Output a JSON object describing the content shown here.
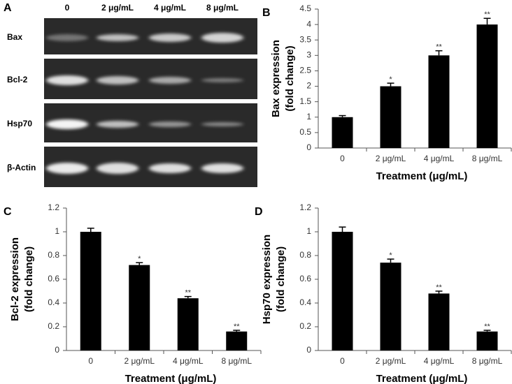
{
  "gel": {
    "panel_label": "A",
    "lanes": [
      "0",
      "2 μg/mL",
      "4 μg/mL",
      "8 μg/mL"
    ],
    "rows": [
      "Bax",
      "Bcl-2",
      "Hsp70",
      "β-Actin"
    ]
  },
  "chart_data": [
    {
      "type": "bar",
      "panel_label": "B",
      "y_label": [
        "Bax expression",
        "(fold change)"
      ],
      "x_label": "Treatment (μg/mL)",
      "categories": [
        "0",
        "2 μg/mL",
        "4 μg/mL",
        "8 μg/mL"
      ],
      "values": [
        1.0,
        2.0,
        3.0,
        4.0
      ],
      "errors": [
        0.05,
        0.1,
        0.15,
        0.2
      ],
      "annotations": [
        null,
        "*",
        "**",
        "**"
      ],
      "color": "#000000",
      "ylim": [
        0,
        4.5
      ],
      "yticks": [
        0,
        0.5,
        1,
        1.5,
        2,
        2.5,
        3,
        3.5,
        4,
        4.5
      ]
    },
    {
      "type": "bar",
      "panel_label": "C",
      "y_label": [
        "Bcl-2 expression",
        "(fold change)"
      ],
      "x_label": "Treatment (μg/mL)",
      "categories": [
        "0",
        "2 μg/mL",
        "4 μg/mL",
        "8 μg/mL"
      ],
      "values": [
        1.0,
        0.72,
        0.44,
        0.16
      ],
      "errors": [
        0.03,
        0.02,
        0.015,
        0.01
      ],
      "annotations": [
        null,
        "*",
        "**",
        "**"
      ],
      "color": "#000000",
      "ylim": [
        0,
        1.2
      ],
      "yticks": [
        0,
        0.2,
        0.4,
        0.6,
        0.8,
        1,
        1.2
      ]
    },
    {
      "type": "bar",
      "panel_label": "D",
      "y_label": [
        "Hsp70 expression",
        "(fold change)"
      ],
      "x_label": "Treatment (μg/mL)",
      "categories": [
        "0",
        "2 μg/mL",
        "4 μg/mL",
        "8 μg/mL"
      ],
      "values": [
        1.0,
        0.74,
        0.48,
        0.16
      ],
      "errors": [
        0.04,
        0.03,
        0.02,
        0.01
      ],
      "annotations": [
        null,
        "*",
        "**",
        "**"
      ],
      "color": "#000000",
      "ylim": [
        0,
        1.2
      ],
      "yticks": [
        0,
        0.2,
        0.4,
        0.6,
        0.8,
        1,
        1.2
      ]
    }
  ]
}
